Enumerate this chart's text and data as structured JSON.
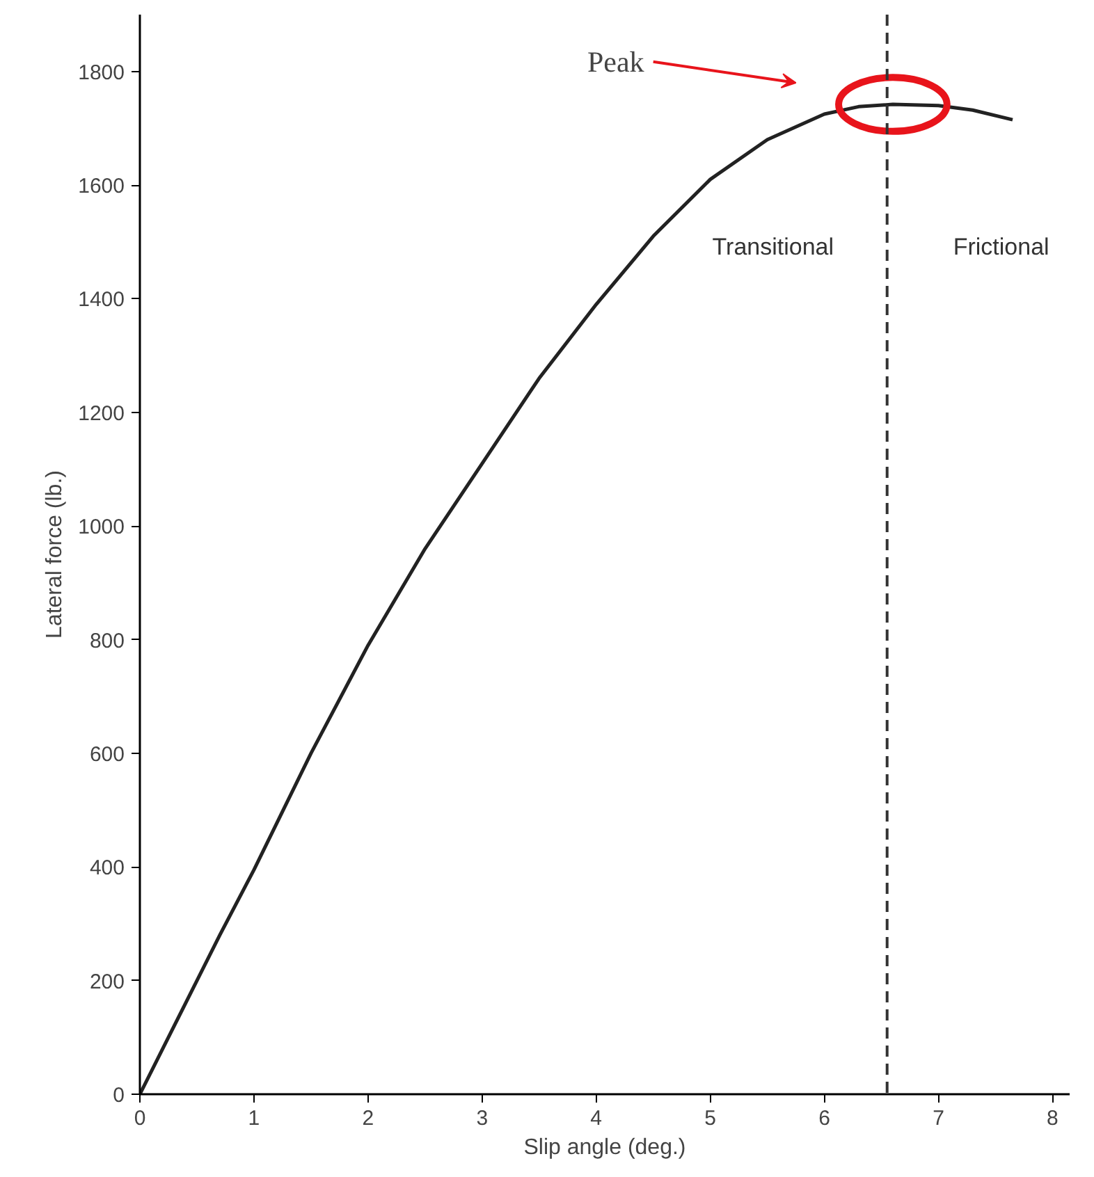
{
  "chart_data": {
    "type": "line",
    "xlabel": "Slip angle (deg.)",
    "ylabel": "Lateral force (lb.)",
    "x": [
      0,
      0.2,
      0.4,
      0.7,
      1,
      1.5,
      2,
      2.5,
      3,
      3.5,
      4,
      4.5,
      5,
      5.5,
      6,
      6.3,
      6.6,
      7,
      7.3,
      7.65
    ],
    "series": [
      {
        "color": "#222222",
        "values": [
          0,
          80,
          160,
          280,
          395,
          600,
          790,
          960,
          1110,
          1260,
          1390,
          1510,
          1610,
          1680,
          1725,
          1738,
          1742,
          1740,
          1732,
          1715
        ]
      }
    ],
    "xlim": [
      0,
      8.15
    ],
    "ylim": [
      0,
      1900
    ],
    "xticks": [
      0,
      1,
      2,
      3,
      4,
      5,
      6,
      7,
      8
    ],
    "yticks": [
      0,
      200,
      400,
      600,
      800,
      1000,
      1200,
      1400,
      1600,
      1800
    ],
    "grid": false,
    "marker": "none",
    "line_style": "solid",
    "ref_lines": [
      {
        "axis": "x",
        "value": 6.55,
        "color": "#333333",
        "line_style": "dashed"
      }
    ],
    "annotations": [
      "Peak",
      "Transitional",
      "Frictional"
    ]
  }
}
